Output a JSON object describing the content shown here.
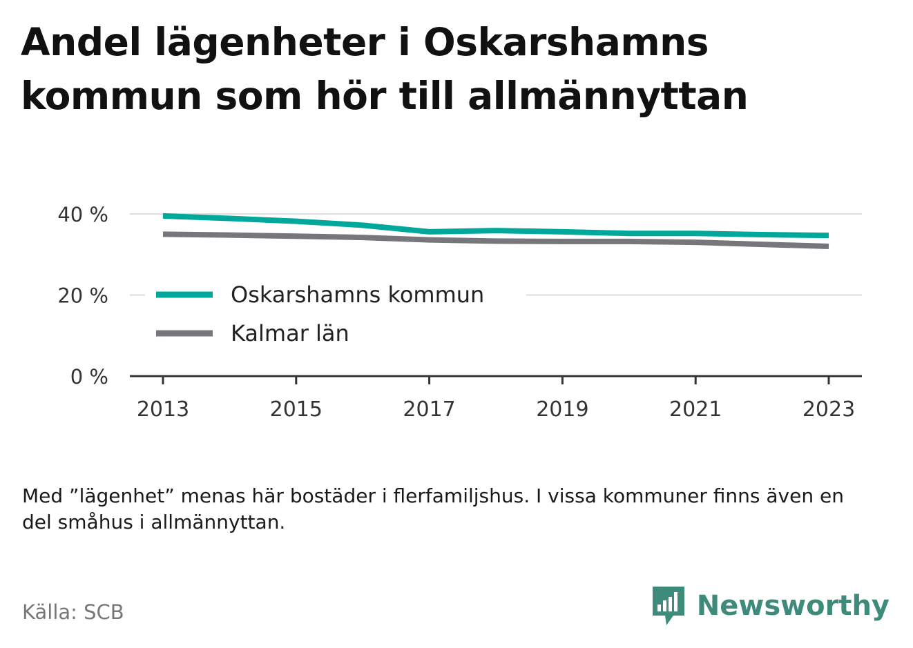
{
  "title": "Andel lägenheter i Oskarshamns kommun som hör till allmännyttan",
  "note": "Med ”lägenhet” menas här bostäder i flerfamiljshus. I vissa kommuner finns även en del småhus i allmännyttan.",
  "source": "Källa: SCB",
  "brand": {
    "name": "Newsworthy",
    "icon": "newsworthy-logo-icon",
    "color": "#3e8b7c"
  },
  "chart_data": {
    "type": "line",
    "title": "Andel lägenheter i Oskarshamns kommun som hör till allmännyttan",
    "xlabel": "",
    "ylabel": "",
    "x": [
      2013,
      2014,
      2015,
      2016,
      2017,
      2018,
      2019,
      2020,
      2021,
      2022,
      2023
    ],
    "xticks": [
      "2013",
      "2015",
      "2017",
      "2019",
      "2021",
      "2023"
    ],
    "yticks": [
      "0 %",
      "20 %",
      "40 %"
    ],
    "ytick_values": [
      0,
      20,
      40
    ],
    "ylim": [
      0,
      40
    ],
    "grid": true,
    "legend_position": "middle-left",
    "series": [
      {
        "name": "Oskarshamns kommun",
        "color": "#00a89c",
        "values": [
          39.5,
          38.9,
          38.2,
          37.2,
          35.6,
          35.9,
          35.6,
          35.2,
          35.2,
          34.9,
          34.7
        ]
      },
      {
        "name": "Kalmar län",
        "color": "#77777b",
        "values": [
          35.0,
          34.8,
          34.5,
          34.2,
          33.6,
          33.3,
          33.2,
          33.2,
          33.0,
          32.5,
          32.0
        ]
      }
    ]
  }
}
